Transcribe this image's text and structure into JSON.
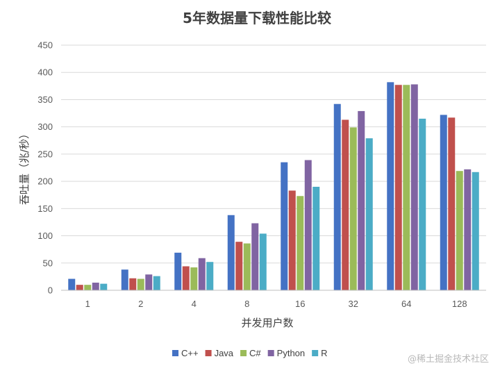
{
  "chart_data": {
    "type": "bar",
    "title": "5年数据量下载性能比较",
    "xlabel": "并发用户数",
    "ylabel": "吞吐量（兆/秒）",
    "categories": [
      "1",
      "2",
      "4",
      "8",
      "16",
      "32",
      "64",
      "128"
    ],
    "ylim": [
      0,
      450
    ],
    "yticks": [
      0,
      50,
      100,
      150,
      200,
      250,
      300,
      350,
      400,
      450
    ],
    "grid": true,
    "legend_position": "bottom",
    "series": [
      {
        "name": "C++",
        "color": "#4472C4",
        "values": [
          21,
          38,
          69,
          138,
          235,
          342,
          382,
          322
        ]
      },
      {
        "name": "Java",
        "color": "#C0504D",
        "values": [
          10,
          22,
          44,
          89,
          183,
          313,
          377,
          317
        ]
      },
      {
        "name": "C#",
        "color": "#9BBB59",
        "values": [
          10,
          21,
          42,
          86,
          173,
          299,
          377,
          219
        ]
      },
      {
        "name": "Python",
        "color": "#8064A2",
        "values": [
          14,
          29,
          59,
          123,
          239,
          329,
          378,
          222
        ]
      },
      {
        "name": "R",
        "color": "#4BACC6",
        "values": [
          12,
          26,
          52,
          104,
          190,
          279,
          315,
          217
        ]
      }
    ]
  },
  "watermark": "@稀土掘金技术社区"
}
